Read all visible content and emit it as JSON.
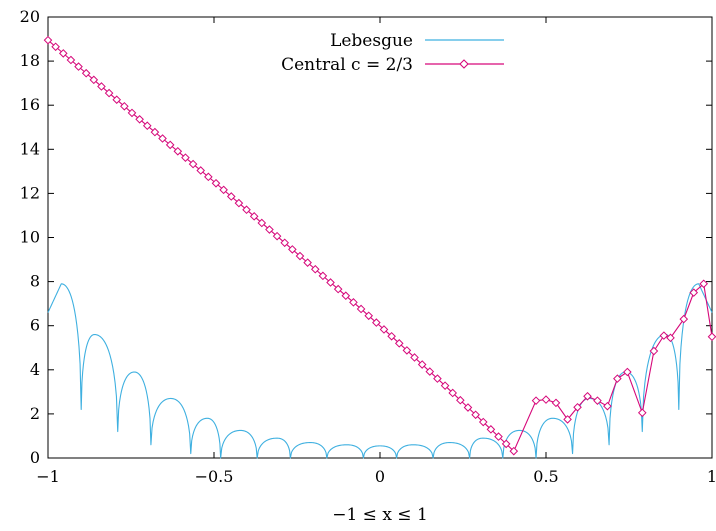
{
  "chart_data": {
    "type": "line",
    "xlabel": "−1 ≤ x ≤ 1",
    "ylabel": "",
    "xlim": [
      -1,
      1
    ],
    "ylim": [
      0,
      20
    ],
    "xticks": [
      -1,
      -0.5,
      0,
      0.5,
      1
    ],
    "xtick_labels": [
      "−1",
      "−0.5",
      "0",
      "0.5",
      "1"
    ],
    "yticks": [
      0,
      2,
      4,
      6,
      8,
      10,
      12,
      14,
      16,
      18,
      20
    ],
    "ytick_labels": [
      "0",
      "2",
      "4",
      "6",
      "8",
      "10",
      "12",
      "14",
      "16",
      "18",
      "20"
    ],
    "legend_position": "top-center",
    "series": [
      {
        "name": "Lebesgue",
        "color": "#3fb0e0",
        "marker": "none",
        "type": "arched",
        "zeros": [
          -0.9,
          -0.79,
          -0.69,
          -0.57,
          -0.48,
          -0.37,
          -0.27,
          -0.16,
          -0.05,
          0.05,
          0.16,
          0.27,
          0.37,
          0.47,
          0.58
        ],
        "dips": [
          {
            "x": -0.9,
            "y": 2.2
          },
          {
            "x": -0.79,
            "y": 1.2
          },
          {
            "x": -0.69,
            "y": 0.6
          },
          {
            "x": -0.57,
            "y": 0.2
          },
          {
            "x": -0.48,
            "y": 0
          },
          {
            "x": -0.37,
            "y": 0
          },
          {
            "x": -0.27,
            "y": 0
          },
          {
            "x": -0.16,
            "y": 0
          },
          {
            "x": -0.05,
            "y": 0
          },
          {
            "x": 0.05,
            "y": 0
          },
          {
            "x": 0.16,
            "y": 0
          },
          {
            "x": 0.27,
            "y": 0
          },
          {
            "x": 0.37,
            "y": 0
          },
          {
            "x": 0.47,
            "y": 0
          },
          {
            "x": 0.58,
            "y": 0.2
          },
          {
            "x": 0.69,
            "y": 0.6
          },
          {
            "x": 0.79,
            "y": 1.2
          },
          {
            "x": 0.9,
            "y": 2.2
          }
        ],
        "peaks": [
          {
            "x": -1.0,
            "y": 6.6
          },
          {
            "x": -0.96,
            "y": 7.9
          },
          {
            "x": -0.86,
            "y": 5.6
          },
          {
            "x": -0.74,
            "y": 3.9
          },
          {
            "x": -0.63,
            "y": 2.7
          },
          {
            "x": -0.52,
            "y": 1.8
          },
          {
            "x": -0.42,
            "y": 1.25
          },
          {
            "x": -0.31,
            "y": 0.9
          },
          {
            "x": -0.21,
            "y": 0.7
          },
          {
            "x": -0.1,
            "y": 0.6
          },
          {
            "x": 0.0,
            "y": 0.55
          },
          {
            "x": 0.1,
            "y": 0.6
          },
          {
            "x": 0.21,
            "y": 0.7
          },
          {
            "x": 0.31,
            "y": 0.9
          },
          {
            "x": 0.42,
            "y": 1.25
          },
          {
            "x": 0.52,
            "y": 1.8
          },
          {
            "x": 0.63,
            "y": 2.7
          },
          {
            "x": 0.74,
            "y": 3.9
          },
          {
            "x": 0.86,
            "y": 5.6
          },
          {
            "x": 0.96,
            "y": 7.9
          },
          {
            "x": 1.0,
            "y": 6.6
          }
        ]
      },
      {
        "name": "Central c = 2/3",
        "color": "#d6087a",
        "marker": "diamond",
        "points": [
          [
            -1.0,
            18.95
          ],
          [
            -0.977,
            18.65
          ],
          [
            -0.954,
            18.35
          ],
          [
            -0.931,
            18.05
          ],
          [
            -0.908,
            17.75
          ],
          [
            -0.885,
            17.45
          ],
          [
            -0.862,
            17.15
          ],
          [
            -0.839,
            16.85
          ],
          [
            -0.816,
            16.55
          ],
          [
            -0.793,
            16.25
          ],
          [
            -0.77,
            15.95
          ],
          [
            -0.747,
            15.65
          ],
          [
            -0.724,
            15.36
          ],
          [
            -0.701,
            15.07
          ],
          [
            -0.678,
            14.78
          ],
          [
            -0.655,
            14.49
          ],
          [
            -0.632,
            14.2
          ],
          [
            -0.609,
            13.91
          ],
          [
            -0.586,
            13.62
          ],
          [
            -0.563,
            13.33
          ],
          [
            -0.54,
            13.04
          ],
          [
            -0.517,
            12.75
          ],
          [
            -0.494,
            12.46
          ],
          [
            -0.471,
            12.16
          ],
          [
            -0.448,
            11.86
          ],
          [
            -0.425,
            11.56
          ],
          [
            -0.402,
            11.26
          ],
          [
            -0.379,
            10.96
          ],
          [
            -0.356,
            10.66
          ],
          [
            -0.333,
            10.36
          ],
          [
            -0.31,
            10.06
          ],
          [
            -0.287,
            9.76
          ],
          [
            -0.264,
            9.46
          ],
          [
            -0.241,
            9.16
          ],
          [
            -0.218,
            8.86
          ],
          [
            -0.195,
            8.56
          ],
          [
            -0.172,
            8.26
          ],
          [
            -0.149,
            7.96
          ],
          [
            -0.126,
            7.66
          ],
          [
            -0.103,
            7.36
          ],
          [
            -0.08,
            7.06
          ],
          [
            -0.057,
            6.76
          ],
          [
            -0.034,
            6.45
          ],
          [
            -0.011,
            6.14
          ],
          [
            0.012,
            5.83
          ],
          [
            0.035,
            5.52
          ],
          [
            0.058,
            5.2
          ],
          [
            0.081,
            4.88
          ],
          [
            0.104,
            4.56
          ],
          [
            0.127,
            4.24
          ],
          [
            0.15,
            3.92
          ],
          [
            0.173,
            3.6
          ],
          [
            0.196,
            3.28
          ],
          [
            0.219,
            2.95
          ],
          [
            0.242,
            2.62
          ],
          [
            0.265,
            2.29
          ],
          [
            0.288,
            1.96
          ],
          [
            0.311,
            1.63
          ],
          [
            0.334,
            1.3
          ],
          [
            0.357,
            0.97
          ],
          [
            0.38,
            0.64
          ],
          [
            0.403,
            0.31
          ]
        ],
        "tail": [
          [
            0.47,
            2.6
          ],
          [
            0.5,
            2.65
          ],
          [
            0.53,
            2.5
          ],
          [
            0.565,
            1.75
          ],
          [
            0.595,
            2.3
          ],
          [
            0.625,
            2.8
          ],
          [
            0.655,
            2.6
          ],
          [
            0.685,
            2.35
          ],
          [
            0.715,
            3.6
          ],
          [
            0.745,
            3.9
          ],
          [
            0.79,
            2.05
          ],
          [
            0.825,
            4.85
          ],
          [
            0.855,
            5.55
          ],
          [
            0.875,
            5.45
          ],
          [
            0.915,
            6.3
          ],
          [
            0.945,
            7.5
          ],
          [
            0.975,
            7.9
          ],
          [
            1.0,
            5.5
          ]
        ]
      }
    ]
  }
}
